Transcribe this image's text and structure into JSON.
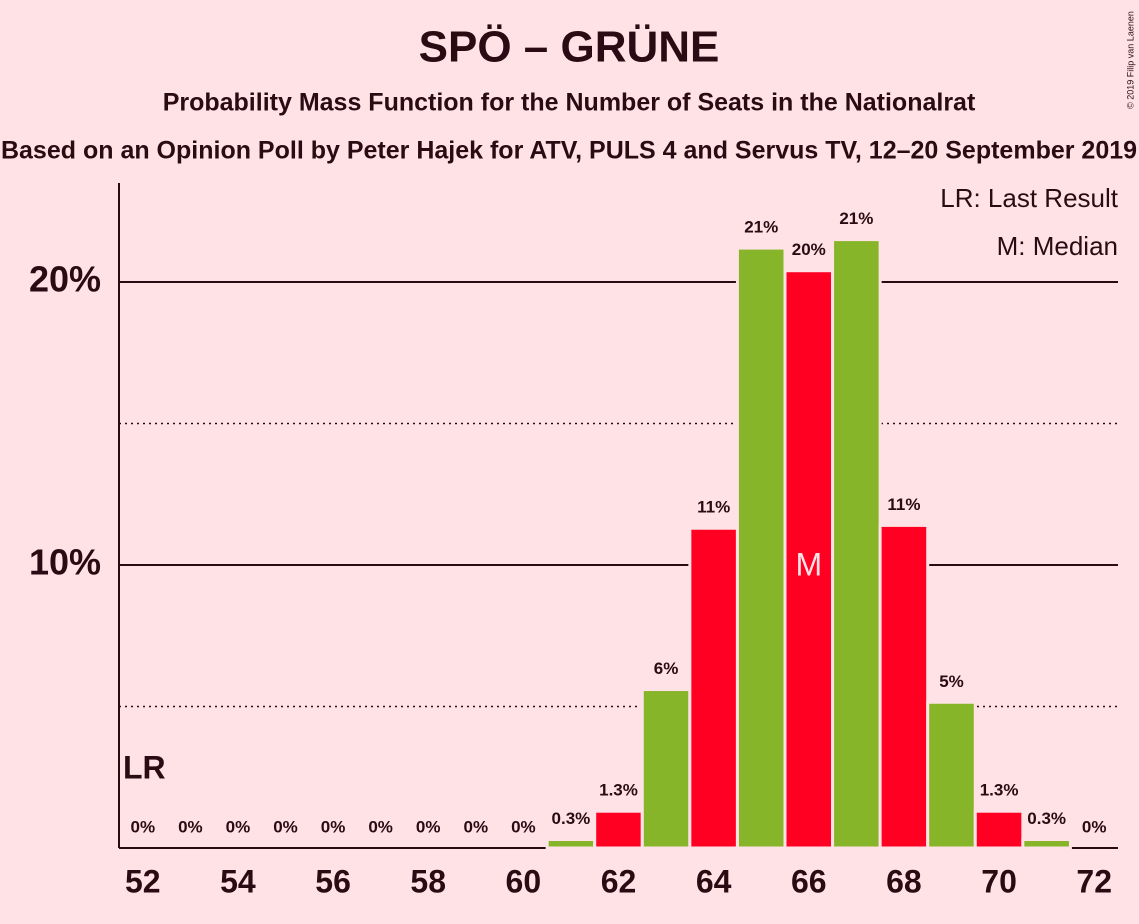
{
  "chart_data": {
    "type": "bar",
    "title": "SPÖ – GRÜNE",
    "subtitle": "Probability Mass Function for the Number of Seats in the Nationalrat",
    "subtitle2": "Based on an Opinion Poll by Peter Hajek for ATV, PULS 4 and Servus TV, 12–20 September 2019",
    "credit": "© 2019 Filip van Laenen",
    "x": [
      52,
      53,
      54,
      55,
      56,
      57,
      58,
      59,
      60,
      61,
      62,
      63,
      64,
      65,
      66,
      67,
      68,
      69,
      70,
      71,
      72
    ],
    "values": [
      0,
      0,
      0,
      0,
      0,
      0,
      0,
      0,
      0,
      0.3,
      1.3,
      5.6,
      11.3,
      21.2,
      20.4,
      21.5,
      11.4,
      5.15,
      1.3,
      0.3,
      0
    ],
    "value_labels": [
      "0%",
      "0%",
      "0%",
      "0%",
      "0%",
      "0%",
      "0%",
      "0%",
      "0%",
      "0.3%",
      "1.3%",
      "6%",
      "11%",
      "21%",
      "20%",
      "21%",
      "11%",
      "5%",
      "1.3%",
      "0.3%",
      "0%"
    ],
    "colors": [
      "#ff0022",
      "#87b52a"
    ],
    "xlim": [
      51.5,
      72.5
    ],
    "xticks": [
      52,
      54,
      56,
      58,
      60,
      62,
      64,
      66,
      68,
      70,
      72
    ],
    "ylim": [
      0,
      23.5
    ],
    "yticks": [
      {
        "value": 10,
        "label": "10%"
      },
      {
        "value": 20,
        "label": "20%"
      }
    ],
    "minor_yticks": [
      5,
      15
    ],
    "grid": true,
    "last_result": {
      "x": 52,
      "label": "LR"
    },
    "median": {
      "x": 66,
      "label": "M"
    },
    "legend": [
      "LR: Last Result",
      "M: Median"
    ]
  }
}
